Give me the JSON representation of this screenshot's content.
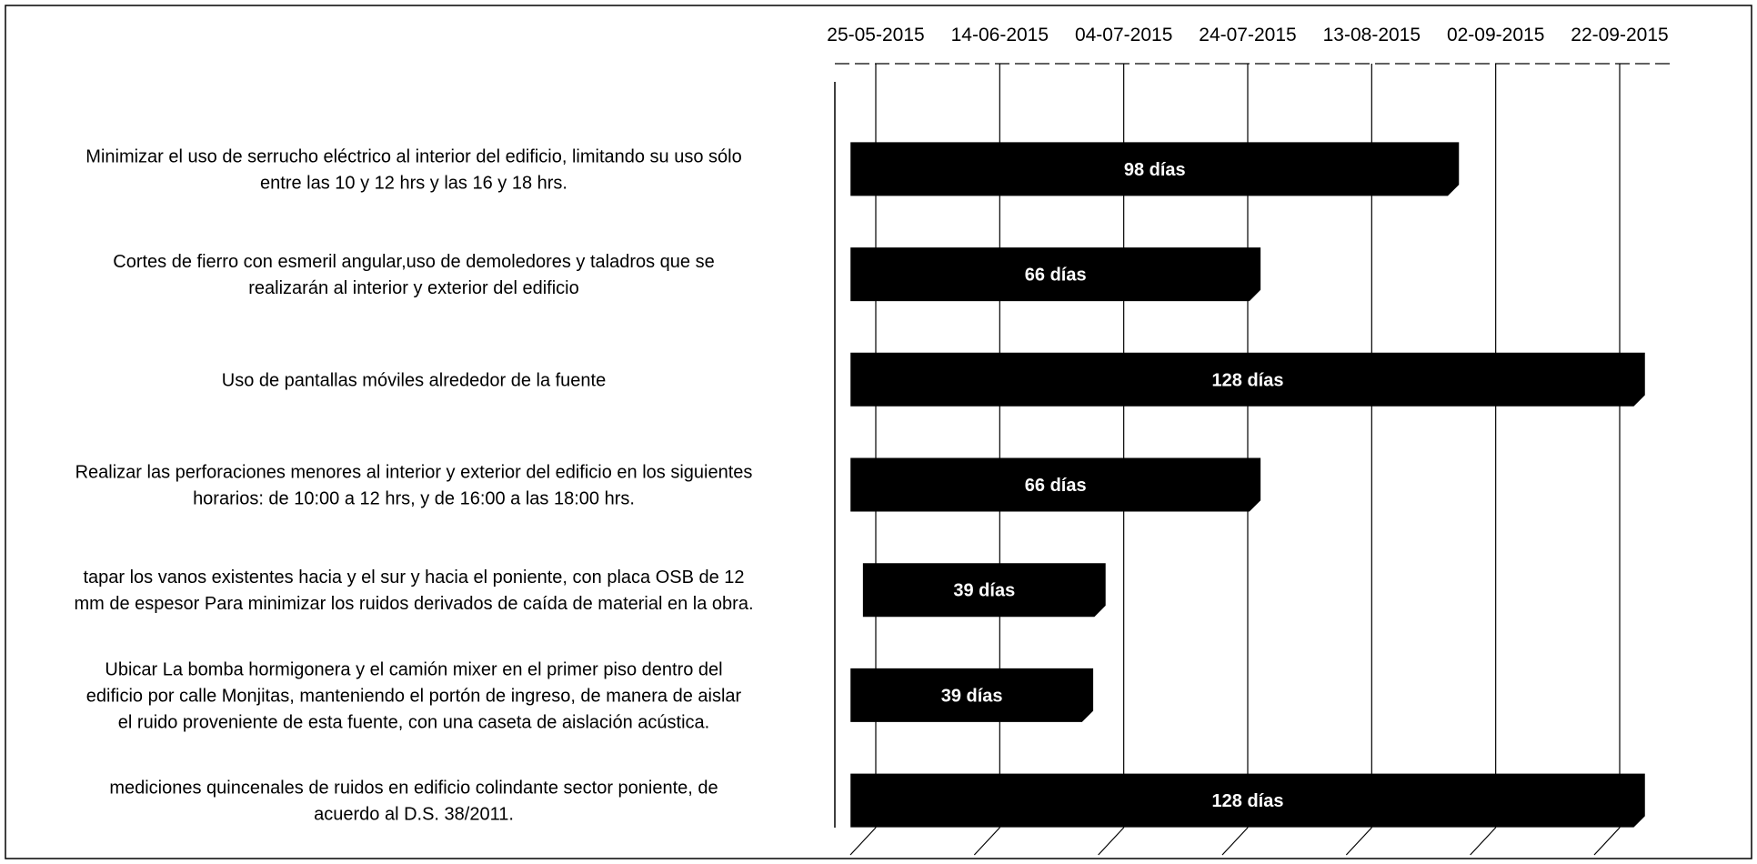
{
  "chart_data": {
    "type": "bar",
    "orientation": "horizontal",
    "x_axis": {
      "type": "date",
      "min": "25-05-2015",
      "max": "22-09-2015",
      "ticks": [
        "25-05-2015",
        "14-06-2015",
        "04-07-2015",
        "24-07-2015",
        "13-08-2015",
        "02-09-2015",
        "22-09-2015"
      ],
      "position": "top",
      "grid": true
    },
    "categories": [
      [
        "Minimizar el uso de serrucho eléctrico al interior del edificio, limitando su uso sólo",
        "entre las 10 y 12 hrs y las 16 y 18 hrs."
      ],
      [
        "Cortes de fierro con esmeril angular,uso de demoledores y taladros  que se",
        "realizarán al interior y exterior del edificio"
      ],
      [
        "Uso de pantallas móviles alrededor de la fuente"
      ],
      [
        "Realizar las perforaciones menores al interior y exterior del edificio en los siguientes",
        "horarios: de 10:00  a 12 hrs, y de 16:00 a las 18:00 hrs."
      ],
      [
        "tapar los vanos existentes hacia y el sur y hacia el poniente, con placa OSB de 12",
        "mm de espesor Para minimizar los ruidos derivados de caída de material en la obra."
      ],
      [
        "Ubicar La bomba hormigonera y el camión mixer en el primer piso dentro del",
        "edificio por calle Monjitas, manteniendo el portón de ingreso, de manera de aislar",
        "el ruido proveniente de esta fuente, con una caseta de aislación acústica."
      ],
      [
        "mediciones quincenales de ruidos en edificio colindante sector poniente, de",
        "acuerdo al D.S. 38/2011."
      ]
    ],
    "bars": [
      {
        "start": "21-05-2015",
        "end": "27-08-2015",
        "days": 98,
        "label": "98 días"
      },
      {
        "start": "21-05-2015",
        "end": "26-07-2015",
        "days": 66,
        "label": "66 días"
      },
      {
        "start": "21-05-2015",
        "end": "26-09-2015",
        "days": 128,
        "label": "128 días"
      },
      {
        "start": "21-05-2015",
        "end": "26-07-2015",
        "days": 66,
        "label": "66 días"
      },
      {
        "start": "23-05-2015",
        "end": "01-07-2015",
        "days": 39,
        "label": "39 días"
      },
      {
        "start": "21-05-2015",
        "end": "29-06-2015",
        "days": 39,
        "label": "39 días"
      },
      {
        "start": "21-05-2015",
        "end": "26-09-2015",
        "days": 128,
        "label": "128 días"
      }
    ],
    "bar_color": "#000000",
    "label_color": "#ffffff"
  }
}
